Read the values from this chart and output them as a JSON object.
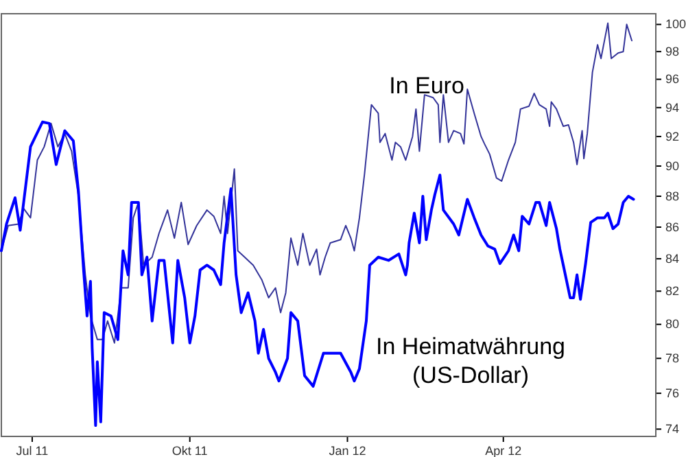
{
  "chart_data": {
    "type": "line",
    "log": true,
    "xlim": [
      "2011-06-13",
      "2012-06-29"
    ],
    "xticks": [
      {
        "value": "2011-07-01",
        "label": "Jul 11"
      },
      {
        "value": "2011-10-01",
        "label": "Okt 11"
      },
      {
        "value": "2012-01-01",
        "label": "Jan 12"
      },
      {
        "value": "2012-04-01",
        "label": "Apr 12"
      }
    ],
    "ylim": [
      73.6,
      100.8
    ],
    "yticks": [
      74,
      76,
      78,
      80,
      82,
      84,
      86,
      88,
      90,
      92,
      94,
      96,
      98,
      100
    ],
    "series": [
      {
        "name": "In Euro",
        "color": "#333399",
        "x": [
          "2011-06-13",
          "2011-06-17",
          "2011-06-23",
          "2011-06-26",
          "2011-06-30",
          "2011-07-04",
          "2011-07-08",
          "2011-07-12",
          "2011-07-16",
          "2011-07-20",
          "2011-07-24",
          "2011-07-28",
          "2011-08-01",
          "2011-08-04",
          "2011-08-08",
          "2011-08-11",
          "2011-08-14",
          "2011-08-18",
          "2011-08-22",
          "2011-08-26",
          "2011-08-29",
          "2011-09-01",
          "2011-09-04",
          "2011-09-09",
          "2011-09-13",
          "2011-09-18",
          "2011-09-22",
          "2011-09-26",
          "2011-09-30",
          "2011-10-05",
          "2011-10-11",
          "2011-10-15",
          "2011-10-19",
          "2011-10-21",
          "2011-10-23",
          "2011-10-27",
          "2011-10-29",
          "2011-11-02",
          "2011-11-07",
          "2011-11-12",
          "2011-11-16",
          "2011-11-20",
          "2011-11-23",
          "2011-11-26",
          "2011-11-29",
          "2011-12-03",
          "2011-12-06",
          "2011-12-10",
          "2011-12-14",
          "2011-12-16",
          "2011-12-19",
          "2011-12-22",
          "2011-12-28",
          "2011-12-31",
          "2012-01-03",
          "2012-01-05",
          "2012-01-08",
          "2012-01-11",
          "2012-01-15",
          "2012-01-19",
          "2012-01-20",
          "2012-01-23",
          "2012-01-27",
          "2012-01-29",
          "2012-02-01",
          "2012-02-04",
          "2012-02-08",
          "2012-02-10",
          "2012-02-12",
          "2012-02-15",
          "2012-02-20",
          "2012-02-23",
          "2012-02-24",
          "2012-02-26",
          "2012-02-29",
          "2012-03-03",
          "2012-03-07",
          "2012-03-09",
          "2012-03-11",
          "2012-03-15",
          "2012-03-19",
          "2012-03-21",
          "2012-03-24",
          "2012-03-28",
          "2012-03-31",
          "2012-04-04",
          "2012-04-08",
          "2012-04-11",
          "2012-04-16",
          "2012-04-19",
          "2012-04-22",
          "2012-04-26",
          "2012-04-28",
          "2012-04-29",
          "2012-05-02",
          "2012-05-06",
          "2012-05-09",
          "2012-05-12",
          "2012-05-14",
          "2012-05-17",
          "2012-05-18",
          "2012-05-20",
          "2012-05-23",
          "2012-05-26",
          "2012-05-28",
          "2012-06-01",
          "2012-06-03",
          "2012-06-07",
          "2012-06-10",
          "2012-06-12",
          "2012-06-15"
        ],
        "values": [
          84.5,
          86.1,
          86.2,
          87.2,
          86.6,
          90.4,
          91.3,
          92.9,
          91.3,
          92.2,
          91.0,
          88.0,
          83.0,
          80.5,
          79.1,
          79.1,
          80.2,
          78.9,
          82.2,
          82.2,
          86.6,
          87.6,
          83.6,
          84.1,
          85.6,
          87.1,
          85.3,
          87.6,
          84.9,
          86.1,
          87.1,
          86.7,
          85.6,
          88.0,
          85.6,
          89.8,
          84.5,
          84.1,
          83.6,
          82.7,
          81.6,
          82.2,
          80.7,
          81.9,
          85.3,
          83.6,
          85.6,
          83.6,
          84.6,
          83.0,
          84.1,
          85.0,
          85.2,
          86.1,
          85.3,
          84.5,
          86.6,
          89.5,
          94.2,
          93.6,
          91.6,
          92.2,
          90.4,
          91.6,
          91.3,
          90.4,
          92.0,
          93.9,
          91.0,
          94.9,
          94.7,
          94.2,
          91.6,
          94.9,
          91.6,
          92.4,
          92.2,
          91.5,
          95.3,
          93.6,
          92.0,
          91.5,
          90.8,
          89.2,
          89.0,
          90.4,
          91.6,
          93.9,
          94.1,
          95.0,
          94.2,
          93.9,
          92.7,
          94.4,
          93.9,
          92.7,
          92.8,
          91.6,
          90.1,
          92.4,
          90.5,
          92.2,
          96.5,
          98.5,
          97.5,
          100.1,
          97.5,
          97.9,
          98.0,
          100.0,
          98.8
        ]
      },
      {
        "name": "In Heimatwährung (US-Dollar)",
        "color": "#0000ff",
        "x": [
          "2011-06-13",
          "2011-06-16",
          "2011-06-21",
          "2011-06-24",
          "2011-06-30",
          "2011-07-07",
          "2011-07-11",
          "2011-07-15",
          "2011-07-20",
          "2011-07-25",
          "2011-07-28",
          "2011-07-31",
          "2011-08-02",
          "2011-08-04",
          "2011-08-05",
          "2011-08-07",
          "2011-08-08",
          "2011-08-10",
          "2011-08-12",
          "2011-08-16",
          "2011-08-20",
          "2011-08-23",
          "2011-08-26",
          "2011-08-28",
          "2011-09-01",
          "2011-09-03",
          "2011-09-06",
          "2011-09-09",
          "2011-09-13",
          "2011-09-16",
          "2011-09-21",
          "2011-09-24",
          "2011-09-28",
          "2011-10-01",
          "2011-10-04",
          "2011-10-07",
          "2011-10-11",
          "2011-10-15",
          "2011-10-19",
          "2011-10-21",
          "2011-10-25",
          "2011-10-28",
          "2011-10-31",
          "2011-11-04",
          "2011-11-08",
          "2011-11-10",
          "2011-11-13",
          "2011-11-16",
          "2011-11-20",
          "2011-11-22",
          "2011-11-27",
          "2011-11-29",
          "2011-12-03",
          "2011-12-07",
          "2011-12-12",
          "2011-12-18",
          "2011-12-28",
          "2012-01-03",
          "2012-01-05",
          "2012-01-08",
          "2012-01-12",
          "2012-01-14",
          "2012-01-19",
          "2012-01-25",
          "2012-01-31",
          "2012-02-04",
          "2012-02-05",
          "2012-02-06",
          "2012-02-09",
          "2012-02-12",
          "2012-02-14",
          "2012-02-16",
          "2012-02-19",
          "2012-02-21",
          "2012-02-24",
          "2012-02-26",
          "2012-03-03",
          "2012-03-06",
          "2012-03-11",
          "2012-03-15",
          "2012-03-19",
          "2012-03-23",
          "2012-03-27",
          "2012-03-30",
          "2012-04-04",
          "2012-04-07",
          "2012-04-10",
          "2012-04-12",
          "2012-04-16",
          "2012-04-20",
          "2012-04-22",
          "2012-04-26",
          "2012-04-28",
          "2012-05-02",
          "2012-05-04",
          "2012-05-06",
          "2012-05-10",
          "2012-05-12",
          "2012-05-14",
          "2012-05-16",
          "2012-05-19",
          "2012-05-22",
          "2012-05-26",
          "2012-05-30",
          "2012-06-01",
          "2012-06-04",
          "2012-06-07",
          "2012-06-10",
          "2012-06-13",
          "2012-06-16"
        ],
        "values": [
          84.5,
          86.2,
          87.9,
          85.8,
          91.3,
          93.0,
          92.9,
          90.1,
          92.4,
          91.7,
          88.3,
          83.3,
          80.5,
          82.6,
          78.6,
          74.2,
          77.8,
          74.4,
          80.7,
          80.5,
          79.1,
          84.5,
          83.0,
          87.6,
          87.6,
          83.0,
          84.1,
          80.2,
          83.9,
          83.9,
          78.9,
          83.9,
          81.6,
          78.9,
          80.5,
          83.3,
          83.6,
          83.3,
          82.4,
          85.0,
          88.5,
          83.0,
          80.7,
          81.9,
          80.2,
          78.3,
          79.7,
          78.0,
          77.2,
          76.7,
          78.0,
          80.7,
          80.2,
          77.0,
          76.4,
          78.3,
          78.3,
          77.2,
          76.7,
          77.4,
          80.2,
          83.6,
          84.1,
          83.9,
          84.3,
          83.0,
          83.6,
          85.0,
          86.9,
          85.0,
          88.0,
          85.2,
          87.1,
          88.1,
          89.4,
          87.1,
          86.2,
          85.5,
          87.8,
          86.6,
          85.5,
          84.8,
          84.6,
          83.7,
          84.5,
          85.5,
          84.5,
          86.7,
          86.2,
          87.6,
          87.6,
          86.1,
          87.6,
          85.9,
          84.6,
          83.6,
          81.6,
          81.6,
          83.0,
          81.5,
          83.7,
          86.3,
          86.6,
          86.6,
          86.9,
          85.9,
          86.2,
          87.6,
          88.0,
          87.8
        ]
      }
    ]
  }
}
